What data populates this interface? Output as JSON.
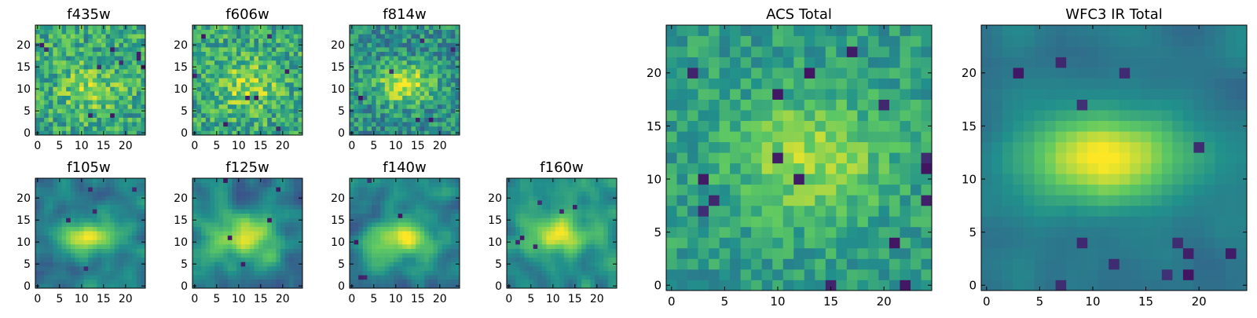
{
  "colormap": [
    "#440154",
    "#3b528b",
    "#21918c",
    "#5ec962",
    "#fde725"
  ],
  "chart_data": [
    {
      "type": "heatmap",
      "title": "f435w",
      "grid_size": 25,
      "texture": "noise",
      "noise_level": 1.0,
      "blob": {
        "cx": 12,
        "cy": 10,
        "sx": 5,
        "sy": 4,
        "amp": 0.2
      },
      "base": 0.6,
      "spread": 0.22,
      "dark_spots": 10,
      "seed": 11,
      "xticks": [
        0,
        5,
        10,
        15,
        20
      ],
      "yticks": [
        0,
        5,
        10,
        15,
        20
      ],
      "xlim": [
        -0.5,
        24.5
      ],
      "ylim": [
        -0.5,
        24.5
      ],
      "grid": false
    },
    {
      "type": "heatmap",
      "title": "f606w",
      "grid_size": 25,
      "texture": "noise",
      "noise_level": 1.0,
      "blob": {
        "cx": 12,
        "cy": 11,
        "sx": 5,
        "sy": 4,
        "amp": 0.25
      },
      "base": 0.6,
      "spread": 0.22,
      "dark_spots": 8,
      "seed": 23,
      "xticks": [
        0,
        5,
        10,
        15,
        20
      ],
      "yticks": [
        0,
        5,
        10,
        15,
        20
      ],
      "xlim": [
        -0.5,
        24.5
      ],
      "ylim": [
        -0.5,
        24.5
      ],
      "grid": false
    },
    {
      "type": "heatmap",
      "title": "f814w",
      "grid_size": 25,
      "texture": "noise",
      "noise_level": 1.0,
      "blob": {
        "cx": 12,
        "cy": 11,
        "sx": 4.5,
        "sy": 3,
        "amp": 0.45
      },
      "base": 0.5,
      "spread": 0.2,
      "dark_spots": 6,
      "seed": 37,
      "xticks": [
        0,
        5,
        10,
        15,
        20
      ],
      "yticks": [
        0,
        5,
        10,
        15,
        20
      ],
      "xlim": [
        -0.5,
        24.5
      ],
      "ylim": [
        -0.5,
        24.5
      ],
      "grid": false
    },
    {
      "type": "heatmap",
      "title": "f105w",
      "grid_size": 25,
      "texture": "smooth",
      "noise_level": 0.55,
      "blob": {
        "cx": 12,
        "cy": 11,
        "sx": 5,
        "sy": 3,
        "amp": 0.55
      },
      "base": 0.4,
      "spread": 0.18,
      "dark_spots": 5,
      "seed": 41,
      "xticks": [
        0,
        5,
        10,
        15,
        20
      ],
      "yticks": [
        0,
        5,
        10,
        15,
        20
      ],
      "xlim": [
        -0.5,
        24.5
      ],
      "ylim": [
        -0.5,
        24.5
      ],
      "grid": false
    },
    {
      "type": "heatmap",
      "title": "f125w",
      "grid_size": 25,
      "texture": "smooth",
      "noise_level": 0.55,
      "blob": {
        "cx": 12,
        "cy": 11,
        "sx": 5,
        "sy": 3,
        "amp": 0.5
      },
      "base": 0.45,
      "spread": 0.18,
      "dark_spots": 5,
      "seed": 53,
      "xticks": [
        0,
        5,
        10,
        15,
        20
      ],
      "yticks": [
        0,
        5,
        10,
        15,
        20
      ],
      "xlim": [
        -0.5,
        24.5
      ],
      "ylim": [
        -0.5,
        24.5
      ],
      "grid": false
    },
    {
      "type": "heatmap",
      "title": "f140w",
      "grid_size": 25,
      "texture": "smooth",
      "noise_level": 0.55,
      "blob": {
        "cx": 11,
        "cy": 11,
        "sx": 5,
        "sy": 3,
        "amp": 0.5
      },
      "base": 0.45,
      "spread": 0.18,
      "dark_spots": 5,
      "seed": 67,
      "xticks": [
        0,
        5,
        10,
        15,
        20
      ],
      "yticks": [
        0,
        5,
        10,
        15,
        20
      ],
      "xlim": [
        -0.5,
        24.5
      ],
      "ylim": [
        -0.5,
        24.5
      ],
      "grid": false
    },
    {
      "type": "heatmap",
      "title": "f160w",
      "grid_size": 25,
      "texture": "smooth",
      "noise_level": 0.5,
      "blob": {
        "cx": 11,
        "cy": 12,
        "sx": 5,
        "sy": 3,
        "amp": 0.5
      },
      "base": 0.5,
      "spread": 0.18,
      "dark_spots": 6,
      "seed": 79,
      "xticks": [
        0,
        5,
        10,
        15,
        20
      ],
      "yticks": [
        0,
        5,
        10,
        15,
        20
      ],
      "xlim": [
        -0.5,
        24.5
      ],
      "ylim": [
        -0.5,
        24.5
      ],
      "grid": false
    },
    {
      "type": "heatmap",
      "title": "ACS Total",
      "grid_size": 25,
      "texture": "noise",
      "noise_level": 0.8,
      "blob": {
        "cx": 13,
        "cy": 12,
        "sx": 5,
        "sy": 4,
        "amp": 0.3
      },
      "base": 0.55,
      "spread": 0.17,
      "dark_spots": 16,
      "seed": 97,
      "xticks": [
        0,
        5,
        10,
        15,
        20
      ],
      "yticks": [
        0,
        5,
        10,
        15,
        20
      ],
      "xlim": [
        -0.5,
        24.5
      ],
      "ylim": [
        -0.5,
        24.5
      ],
      "grid": false
    },
    {
      "type": "heatmap",
      "title": "WFC3 IR Total",
      "grid_size": 25,
      "texture": "smooth",
      "noise_level": 0.3,
      "blob": {
        "cx": 11,
        "cy": 12,
        "sx": 5.5,
        "sy": 3,
        "amp": 0.6
      },
      "base": 0.4,
      "spread": 0.12,
      "dark_spots": 14,
      "seed": 113,
      "xticks": [
        0,
        5,
        10,
        15,
        20
      ],
      "yticks": [
        0,
        5,
        10,
        15,
        20
      ],
      "xlim": [
        -0.5,
        24.5
      ],
      "ylim": [
        -0.5,
        24.5
      ],
      "grid": false
    }
  ]
}
